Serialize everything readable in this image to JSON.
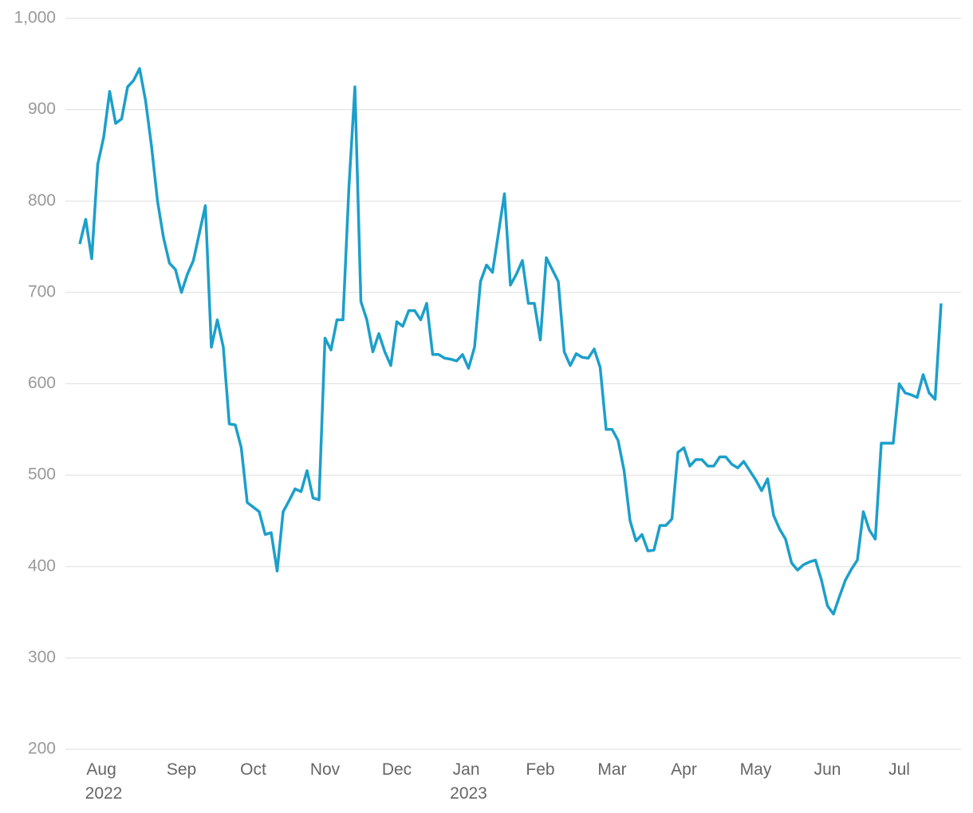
{
  "chart_data": {
    "type": "line",
    "categories": [
      null,
      null,
      null,
      null,
      "Aug 2022",
      null,
      null,
      null,
      null,
      null,
      null,
      null,
      null,
      null,
      null,
      null,
      null,
      "Sep",
      null,
      null,
      null,
      null,
      null,
      null,
      null,
      null,
      null,
      null,
      null,
      "Oct",
      null,
      null,
      null,
      null,
      null,
      null,
      null,
      null,
      null,
      null,
      null,
      "Nov",
      null,
      null,
      null,
      null,
      null,
      null,
      null,
      null,
      null,
      null,
      null,
      "Dec",
      null,
      null,
      null,
      null,
      null,
      null,
      null,
      null,
      null,
      null,
      null,
      "Jan 2023",
      null,
      null,
      null,
      null,
      null,
      null,
      null,
      null,
      null,
      null,
      null,
      "Feb",
      null,
      null,
      null,
      null,
      null,
      null,
      null,
      null,
      null,
      null,
      null,
      "Mar",
      null,
      null,
      null,
      null,
      null,
      null,
      null,
      null,
      null,
      null,
      null,
      "Apr",
      null,
      null,
      null,
      null,
      null,
      null,
      null,
      null,
      null,
      null,
      null,
      "May",
      null,
      null,
      null,
      null,
      null,
      null,
      null,
      null,
      null,
      null,
      null,
      "Jun",
      null,
      null,
      null,
      null,
      null,
      null,
      null,
      null,
      null,
      null,
      null,
      "Jul",
      null,
      null,
      null,
      null,
      null,
      null,
      null
    ],
    "series": [
      {
        "color": "#1c9fcb",
        "values": [
          753,
          780,
          737,
          840,
          870,
          920,
          885,
          890,
          925,
          932,
          945,
          910,
          860,
          800,
          760,
          732,
          725,
          700,
          720,
          735,
          765,
          795,
          640,
          670,
          640,
          556,
          555,
          530,
          470,
          465,
          460,
          435,
          437,
          395,
          460,
          472,
          485,
          482,
          505,
          475,
          473,
          650,
          637,
          670,
          670,
          815,
          925,
          690,
          670,
          635,
          655,
          635,
          620,
          668,
          663,
          680,
          680,
          670,
          688,
          632,
          632,
          628,
          627,
          625,
          632,
          617,
          640,
          712,
          730,
          722,
          765,
          808,
          708,
          720,
          735,
          688,
          688,
          648,
          738,
          725,
          712,
          635,
          620,
          633,
          629,
          628,
          638,
          618,
          550,
          550,
          538,
          505,
          450,
          428,
          435,
          417,
          418,
          445,
          445,
          452,
          525,
          530,
          510,
          517,
          517,
          510,
          510,
          520,
          520,
          512,
          508,
          515,
          505,
          495,
          483,
          496,
          456,
          441,
          430,
          404,
          396,
          402,
          405,
          407,
          385,
          357,
          348,
          367,
          385,
          397,
          407,
          460,
          440,
          430,
          535,
          535,
          535,
          600,
          590,
          588,
          585,
          610,
          590,
          583,
          688
        ]
      }
    ],
    "ylim": [
      200,
      1000
    ],
    "yticks": [
      200,
      300,
      400,
      500,
      600,
      700,
      800,
      900,
      {
        "value": 1000,
        "label": "1,000"
      }
    ],
    "grid": true
  }
}
